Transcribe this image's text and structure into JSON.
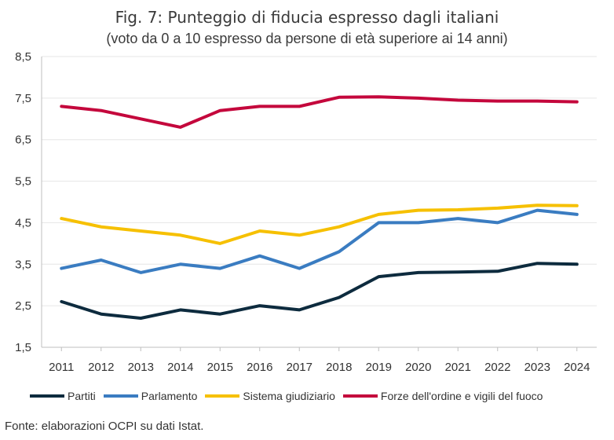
{
  "title": "Fig. 7: Punteggio di fiducia espresso dagli italiani",
  "subtitle": "(voto da 0 a 10 espresso da persone di età superiore ai 14 anni)",
  "source": "Fonte: elaborazioni OCPI su dati Istat.",
  "chart_data": {
    "type": "line",
    "title": "Fig. 7: Punteggio di fiducia espresso dagli italiani",
    "subtitle": "(voto da 0 a 10 espresso da persone di età superiore ai 14 anni)",
    "x": [
      "2011",
      "2012",
      "2013",
      "2014",
      "2015",
      "2016",
      "2017",
      "2018",
      "2019",
      "2020",
      "2021",
      "2022",
      "2023",
      "2024"
    ],
    "ylim": [
      1.5,
      8.5
    ],
    "yticks": [
      "1,5",
      "2,5",
      "3,5",
      "4,5",
      "5,5",
      "6,5",
      "7,5",
      "8,5"
    ],
    "yticks_values": [
      1.5,
      2.5,
      3.5,
      4.5,
      5.5,
      6.5,
      7.5,
      8.5
    ],
    "grid": true,
    "legend_position": "bottom",
    "series": [
      {
        "name": "Partiti",
        "color": "#0d2b3e",
        "values": [
          2.6,
          2.3,
          2.2,
          2.4,
          2.3,
          2.5,
          2.4,
          2.7,
          3.2,
          3.3,
          3.31,
          3.33,
          3.52,
          3.5
        ]
      },
      {
        "name": "Parlamento",
        "color": "#3a7cc1",
        "values": [
          3.4,
          3.6,
          3.3,
          3.5,
          3.4,
          3.7,
          3.4,
          3.8,
          4.5,
          4.5,
          4.6,
          4.5,
          4.8,
          4.7
        ]
      },
      {
        "name": "Sistema giudiziario",
        "color": "#f6c000",
        "values": [
          4.6,
          4.4,
          4.3,
          4.2,
          4.0,
          4.3,
          4.2,
          4.4,
          4.7,
          4.8,
          4.81,
          4.85,
          4.92,
          4.91
        ]
      },
      {
        "name": "Forze dell'ordine e vigili del fuoco",
        "color": "#c4073c",
        "values": [
          7.3,
          7.2,
          7.0,
          6.8,
          7.2,
          7.3,
          7.3,
          7.52,
          7.53,
          7.5,
          7.45,
          7.43,
          7.43,
          7.41
        ]
      }
    ]
  }
}
